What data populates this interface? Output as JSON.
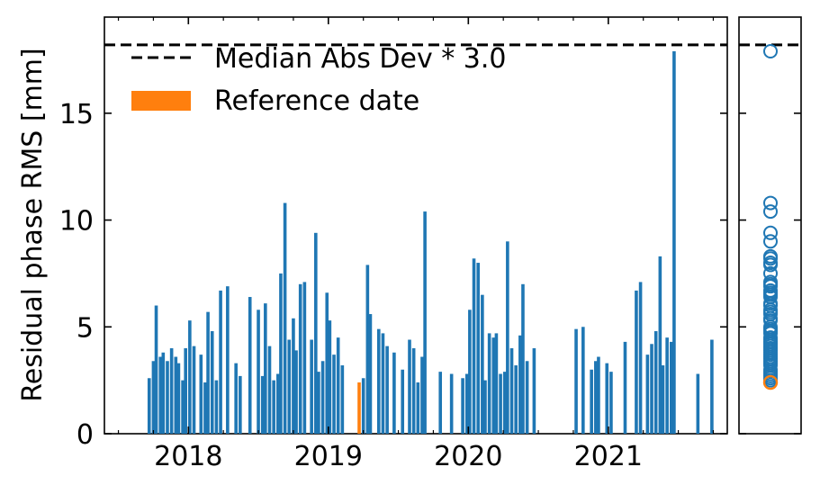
{
  "chart_data": {
    "type": "bar",
    "ylabel": "Residual phase RMS [mm]",
    "xlabel": "",
    "title": "",
    "x_ticks": [
      2018,
      2019,
      2020,
      2021
    ],
    "y_ticks": [
      0,
      5,
      10,
      15
    ],
    "xlim": [
      2017.4,
      2021.85
    ],
    "ylim": [
      0,
      19.5
    ],
    "threshold": {
      "label": "Median Abs Dev * 3.0",
      "value": 18.2
    },
    "legend": {
      "placement": "top-left",
      "entries": [
        {
          "name": "Median Abs Dev * 3.0",
          "style": "dashed-line"
        },
        {
          "name": "Reference date",
          "style": "patch"
        }
      ]
    },
    "colors": {
      "bars": "#1f77b4",
      "reference": "#ff7f0e",
      "threshold": "#000000"
    },
    "reference_date": {
      "x": 2019.22,
      "value": 2.4
    },
    "series": [
      {
        "points": [
          [
            2017.72,
            2.6
          ],
          [
            2017.75,
            3.4
          ],
          [
            2017.77,
            6.0
          ],
          [
            2017.8,
            3.6
          ],
          [
            2017.82,
            3.8
          ],
          [
            2017.85,
            3.4
          ],
          [
            2017.88,
            4.0
          ],
          [
            2017.91,
            3.6
          ],
          [
            2017.93,
            3.3
          ],
          [
            2017.96,
            2.5
          ],
          [
            2017.98,
            4.0
          ],
          [
            2018.01,
            5.3
          ],
          [
            2018.04,
            4.1
          ],
          [
            2018.09,
            3.7
          ],
          [
            2018.12,
            2.4
          ],
          [
            2018.14,
            5.7
          ],
          [
            2018.17,
            4.8
          ],
          [
            2018.2,
            2.5
          ],
          [
            2018.23,
            6.7
          ],
          [
            2018.28,
            6.9
          ],
          [
            2018.34,
            3.3
          ],
          [
            2018.37,
            2.7
          ],
          [
            2018.44,
            6.4
          ],
          [
            2018.5,
            5.8
          ],
          [
            2018.53,
            2.7
          ],
          [
            2018.55,
            6.1
          ],
          [
            2018.58,
            4.1
          ],
          [
            2018.61,
            2.5
          ],
          [
            2018.64,
            2.8
          ],
          [
            2018.66,
            7.5
          ],
          [
            2018.69,
            10.8
          ],
          [
            2018.72,
            4.4
          ],
          [
            2018.75,
            5.4
          ],
          [
            2018.77,
            3.9
          ],
          [
            2018.8,
            7.0
          ],
          [
            2018.83,
            7.1
          ],
          [
            2018.88,
            4.4
          ],
          [
            2018.91,
            9.4
          ],
          [
            2018.93,
            2.9
          ],
          [
            2018.96,
            3.4
          ],
          [
            2018.99,
            6.6
          ],
          [
            2019.01,
            5.3
          ],
          [
            2019.04,
            3.7
          ],
          [
            2019.07,
            4.5
          ],
          [
            2019.1,
            3.2
          ],
          [
            2019.25,
            2.6
          ],
          [
            2019.28,
            7.9
          ],
          [
            2019.3,
            5.6
          ],
          [
            2019.36,
            4.9
          ],
          [
            2019.39,
            4.7
          ],
          [
            2019.42,
            4.1
          ],
          [
            2019.47,
            3.8
          ],
          [
            2019.53,
            3.0
          ],
          [
            2019.58,
            4.4
          ],
          [
            2019.61,
            4.0
          ],
          [
            2019.64,
            2.4
          ],
          [
            2019.67,
            3.6
          ],
          [
            2019.69,
            10.4
          ],
          [
            2019.8,
            2.9
          ],
          [
            2019.88,
            2.8
          ],
          [
            2019.96,
            2.6
          ],
          [
            2019.99,
            2.8
          ],
          [
            2020.01,
            5.8
          ],
          [
            2020.04,
            8.2
          ],
          [
            2020.07,
            8.0
          ],
          [
            2020.1,
            6.5
          ],
          [
            2020.12,
            2.5
          ],
          [
            2020.15,
            4.7
          ],
          [
            2020.18,
            4.5
          ],
          [
            2020.2,
            4.7
          ],
          [
            2020.23,
            2.8
          ],
          [
            2020.26,
            2.9
          ],
          [
            2020.28,
            9.0
          ],
          [
            2020.31,
            4.0
          ],
          [
            2020.34,
            3.2
          ],
          [
            2020.37,
            4.6
          ],
          [
            2020.39,
            7.0
          ],
          [
            2020.42,
            3.4
          ],
          [
            2020.47,
            4.0
          ],
          [
            2020.77,
            4.9
          ],
          [
            2020.82,
            5.0
          ],
          [
            2020.88,
            3.0
          ],
          [
            2020.91,
            3.4
          ],
          [
            2020.93,
            3.6
          ],
          [
            2020.99,
            3.3
          ],
          [
            2021.02,
            2.9
          ],
          [
            2021.12,
            4.3
          ],
          [
            2021.2,
            6.7
          ],
          [
            2021.23,
            7.1
          ],
          [
            2021.28,
            3.7
          ],
          [
            2021.31,
            4.2
          ],
          [
            2021.34,
            4.8
          ],
          [
            2021.37,
            8.3
          ],
          [
            2021.39,
            3.2
          ],
          [
            2021.42,
            4.5
          ],
          [
            2021.45,
            4.3
          ],
          [
            2021.47,
            17.9
          ],
          [
            2021.64,
            2.8
          ],
          [
            2021.74,
            4.4
          ]
        ]
      }
    ],
    "side_panel": {
      "type": "scatter",
      "description_values": [
        17.9,
        10.8,
        10.4,
        9.4,
        9.0,
        8.3,
        8.2,
        8.0,
        7.9,
        7.5,
        7.1,
        7.0,
        6.9,
        6.7,
        6.6,
        6.5,
        6.4,
        6.1,
        6.0,
        5.8,
        5.7,
        5.6,
        5.4,
        5.3,
        5.0,
        4.9,
        4.8,
        4.7,
        4.5,
        4.4,
        4.3,
        4.2,
        4.1,
        4.0,
        3.9,
        3.8,
        3.7,
        3.6,
        3.5,
        3.4,
        3.3,
        3.2,
        3.0,
        2.9,
        2.8,
        2.7,
        2.6,
        2.5,
        2.4
      ],
      "reference_value": 2.4
    }
  }
}
